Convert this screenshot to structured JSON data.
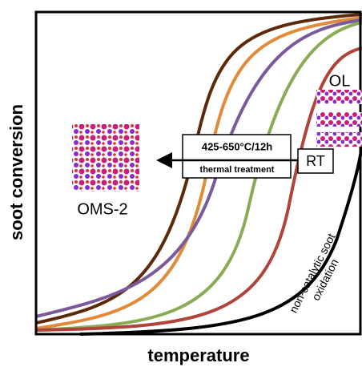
{
  "axes": {
    "y_label": "soot conversion",
    "x_label": "temperature"
  },
  "labels": {
    "ol": "OL",
    "oms": "OMS-2",
    "rt": "RT",
    "condition": "425-650°C/12h",
    "treatment": "thermal treatment",
    "noncat_1": "non-catalytic soot",
    "noncat_2": "oxidation"
  }
}
